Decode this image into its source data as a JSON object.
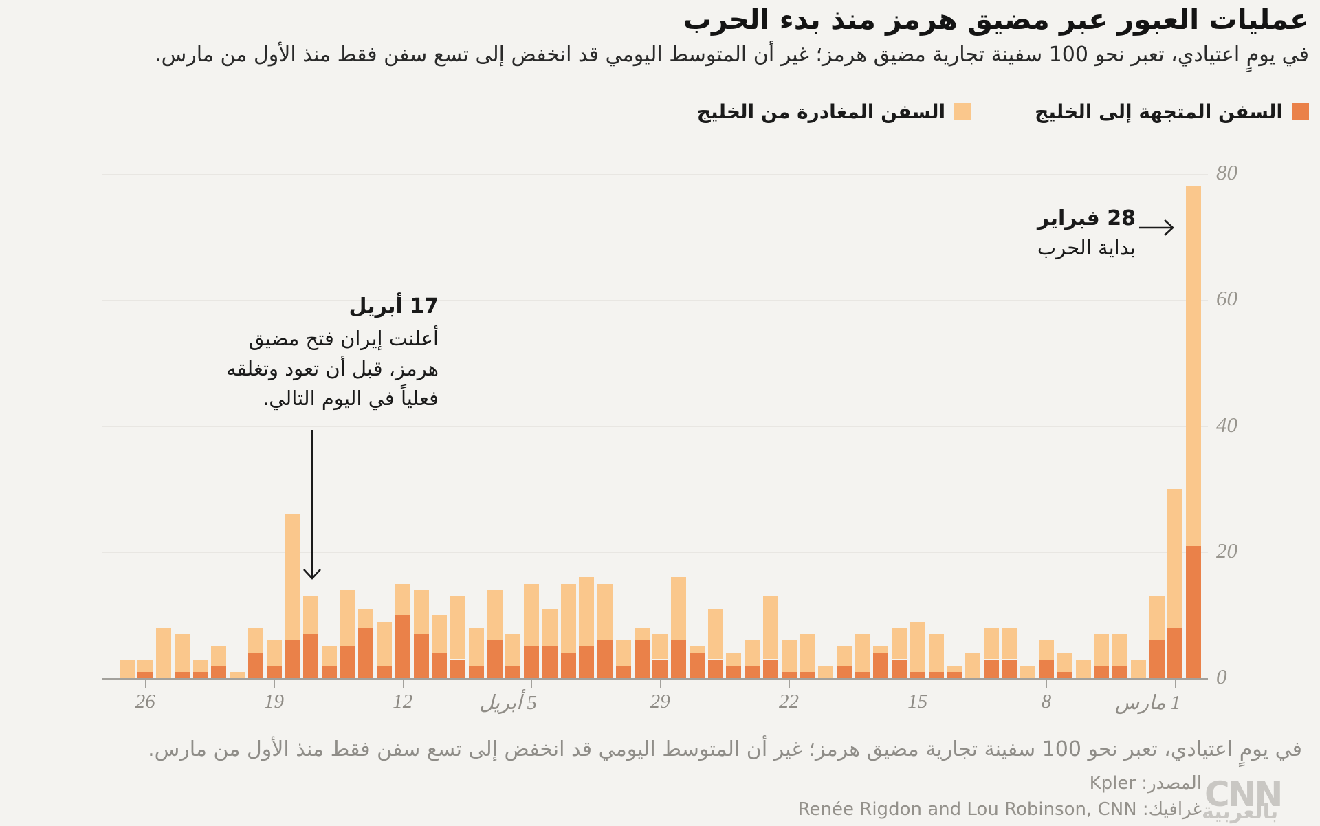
{
  "header": {
    "title": "عمليات العبور عبر مضيق هرمز منذ بدء الحرب",
    "subtitle": "في يومٍ اعتيادي، تعبر نحو 100 سفينة تجارية مضيق هرمز؛ غير أن المتوسط اليومي قد انخفض إلى تسع سفن فقط منذ الأول من مارس."
  },
  "legend": {
    "to_gulf": {
      "label": "السفن المتجهة إلى الخليج",
      "color": "#EA8149"
    },
    "from_gulf": {
      "label": "السفن المغادرة من الخليج",
      "color": "#FAC78C"
    }
  },
  "annotations": {
    "war_start": {
      "title": "28 فبراير",
      "body": "بداية الحرب"
    },
    "april17": {
      "title": "17 أبريل",
      "body": "أعلنت إيران فتح مضيق هرمز، قبل أن تعود وتغلقه فعلياً في اليوم التالي."
    }
  },
  "footer": {
    "caption": "في يومٍ اعتيادي، تعبر نحو 100 سفينة تجارية مضيق هرمز؛ غير أن المتوسط اليومي قد انخفض إلى تسع سفن فقط منذ الأول من مارس.",
    "source": "المصدر: Kpler",
    "credit": "غرافيك: Renée Rigdon and Lou Robinson, CNN",
    "logo_cnn": "CNN",
    "logo_ar": "بالعربية"
  },
  "chart_data": {
    "type": "bar",
    "stacked": true,
    "time_axis_direction": "right-to-left (earliest date on the right)",
    "title": "عمليات العبور عبر مضيق هرمز منذ بدء الحرب",
    "ylabel": "",
    "xlabel": "",
    "grid": true,
    "legend_position": "top-right",
    "y_axis": {
      "ticks": [
        0,
        20,
        40,
        60,
        80
      ],
      "range": [
        0,
        80
      ]
    },
    "x_ticks": [
      {
        "label": "1 مارس",
        "day": 1
      },
      {
        "label": "8",
        "day": 8
      },
      {
        "label": "15",
        "day": 15
      },
      {
        "label": "22",
        "day": 22
      },
      {
        "label": "29",
        "day": 29
      },
      {
        "label": "5 أبريل",
        "day": 36
      },
      {
        "label": "12",
        "day": 43
      },
      {
        "label": "19",
        "day": 50
      },
      {
        "label": "26",
        "day": 57
      }
    ],
    "dates": [
      "Feb 28",
      "Mar 1",
      "Mar 2",
      "Mar 3",
      "Mar 4",
      "Mar 5",
      "Mar 6",
      "Mar 7",
      "Mar 8",
      "Mar 9",
      "Mar 10",
      "Mar 11",
      "Mar 12",
      "Mar 13",
      "Mar 14",
      "Mar 15",
      "Mar 16",
      "Mar 17",
      "Mar 18",
      "Mar 19",
      "Mar 20",
      "Mar 21",
      "Mar 22",
      "Mar 23",
      "Mar 24",
      "Mar 25",
      "Mar 26",
      "Mar 27",
      "Mar 28",
      "Mar 29",
      "Mar 30",
      "Mar 31",
      "Apr 1",
      "Apr 2",
      "Apr 3",
      "Apr 4",
      "Apr 5",
      "Apr 6",
      "Apr 7",
      "Apr 8",
      "Apr 9",
      "Apr 10",
      "Apr 11",
      "Apr 12",
      "Apr 13",
      "Apr 14",
      "Apr 15",
      "Apr 16",
      "Apr 17",
      "Apr 18",
      "Apr 19",
      "Apr 20",
      "Apr 21",
      "Apr 22",
      "Apr 23",
      "Apr 24",
      "Apr 25",
      "Apr 26",
      "Apr 27"
    ],
    "series": [
      {
        "name": "السفن المتجهة إلى الخليج",
        "color": "#EA8149",
        "values": [
          21,
          8,
          6,
          0,
          2,
          2,
          0,
          1,
          3,
          0,
          3,
          3,
          0,
          1,
          1,
          1,
          3,
          4,
          1,
          2,
          0,
          1,
          1,
          3,
          2,
          2,
          3,
          4,
          6,
          3,
          6,
          2,
          6,
          5,
          4,
          5,
          5,
          2,
          6,
          2,
          3,
          4,
          7,
          10,
          2,
          8,
          5,
          2,
          7,
          6,
          2,
          4,
          0,
          2,
          1,
          1,
          0,
          1,
          0
        ]
      },
      {
        "name": "السفن المغادرة من الخليج",
        "color": "#FAC78C",
        "values": [
          57,
          22,
          7,
          3,
          5,
          5,
          3,
          3,
          3,
          2,
          5,
          5,
          4,
          1,
          6,
          8,
          5,
          1,
          6,
          3,
          2,
          6,
          5,
          10,
          4,
          2,
          8,
          1,
          10,
          4,
          2,
          4,
          9,
          11,
          11,
          6,
          10,
          5,
          8,
          6,
          10,
          6,
          7,
          5,
          7,
          3,
          9,
          3,
          6,
          20,
          4,
          4,
          1,
          3,
          2,
          6,
          8,
          2,
          3
        ]
      }
    ]
  }
}
